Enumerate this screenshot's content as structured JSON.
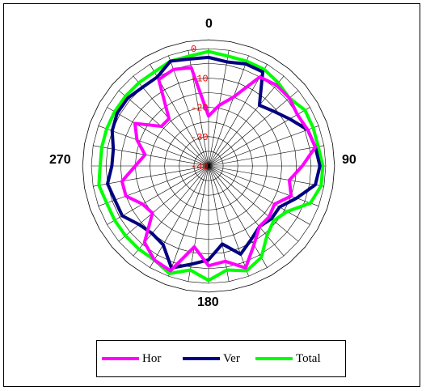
{
  "chart_data": {
    "type": "radar",
    "angle_labels": [
      "0",
      "90",
      "180",
      "270"
    ],
    "radial_ticks": [
      "0",
      "-10",
      "-20",
      "-30",
      "-40"
    ],
    "rlim": [
      -40,
      0
    ],
    "angular_gridlines_deg": 10,
    "angles_deg": [
      0,
      10,
      20,
      30,
      40,
      50,
      60,
      70,
      80,
      90,
      100,
      110,
      120,
      130,
      140,
      150,
      160,
      170,
      180,
      190,
      200,
      210,
      220,
      230,
      240,
      250,
      260,
      270,
      280,
      290,
      300,
      310,
      320,
      330,
      340,
      350
    ],
    "legend_position": "bottom",
    "series": [
      {
        "name": "Hor",
        "color": "#ff00ff",
        "values": [
          -23,
          -19,
          -15,
          -5,
          -4,
          -4,
          -5,
          -4,
          -3,
          -8,
          -12,
          -10,
          -14,
          -13,
          -13,
          -9,
          -3,
          -7,
          -6,
          -12,
          -2,
          -3,
          -6,
          -15,
          -14,
          -10,
          -10,
          -15,
          -18,
          -14,
          -11,
          -19,
          -19,
          -6,
          -5,
          -6
        ]
      },
      {
        "name": "Ver",
        "color": "#000080",
        "values": [
          -3,
          -4,
          -3,
          -3,
          -13,
          -11,
          -8,
          -4,
          -3,
          -2,
          -3,
          -8,
          -12,
          -12,
          -13,
          -11,
          -8,
          -13,
          -8,
          -6,
          -3,
          -9,
          -10,
          -9,
          -6,
          -6,
          -5,
          -7,
          -7,
          -5,
          -4,
          -4,
          -5,
          -5,
          -2,
          -3
        ]
      },
      {
        "name": "Total",
        "color": "#00ff00",
        "values": [
          -1,
          -2,
          -2,
          -2,
          -3,
          -4,
          -2,
          -2,
          -2,
          -1,
          -1,
          -3,
          -9,
          -11,
          -9,
          -4,
          -2,
          -4,
          -1,
          -4,
          -1,
          -3,
          -3,
          -3,
          -3,
          -3,
          -2,
          -3,
          -3,
          -3,
          -3,
          -3,
          -3,
          -3,
          -2,
          -2
        ]
      }
    ]
  }
}
